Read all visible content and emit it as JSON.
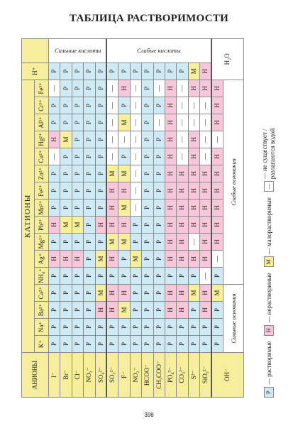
{
  "title": "ТАБЛИЦА РАСТВОРИМОСТИ",
  "table": {
    "anions_header": "АНИОНЫ",
    "cations_header": "КАТИОНЫ",
    "cation_groups": [
      {
        "label": "Сильные основания",
        "cations": [
          "K⁺",
          "Na⁺",
          "Ba²⁺",
          "Ca²⁺"
        ]
      },
      {
        "label": "Слабые основания",
        "cations": [
          "NH₄⁺",
          "Ag⁺",
          "Mg²⁺",
          "Pb²⁺",
          "Mn²⁺",
          "Fe²⁺",
          "Zn²⁺",
          "Cu²⁺",
          "Hg²⁺",
          "Al³⁺",
          "Cr³⁺",
          "Fe³⁺"
        ]
      }
    ],
    "acid_cation": "H⁺",
    "acid_groups": [
      {
        "label": "Сильные кислоты",
        "rows": [
          {
            "anion": "I⁻",
            "cells": [
              "Р",
              "Р",
              "Р",
              "Р",
              "Р",
              "Н",
              "Р",
              "Н",
              "Р",
              "Р",
              "Р",
              "—",
              "Н",
              "Р",
              "Р",
              "—",
              "Р"
            ]
          },
          {
            "anion": "Br⁻",
            "cells": [
              "Р",
              "Р",
              "Р",
              "Р",
              "Р",
              "Н",
              "Р",
              "М",
              "Р",
              "Р",
              "Р",
              "Р",
              "М",
              "Р",
              "Р",
              "Р",
              "Р"
            ]
          },
          {
            "anion": "Cl⁻",
            "cells": [
              "Р",
              "Р",
              "Р",
              "Р",
              "Р",
              "Н",
              "Р",
              "М",
              "Р",
              "Р",
              "Р",
              "Р",
              "Р",
              "Р",
              "Р",
              "Р",
              "Р"
            ]
          },
          {
            "anion": "NO₃⁻",
            "cells": [
              "Р",
              "Р",
              "Р",
              "Р",
              "Р",
              "Р",
              "Р",
              "Р",
              "Р",
              "Р",
              "Р",
              "Р",
              "Р",
              "Р",
              "Р",
              "Р",
              "Р"
            ]
          },
          {
            "anion": "SO₄²⁻",
            "cells": [
              "Р",
              "Р",
              "Н",
              "М",
              "Р",
              "М",
              "Р",
              "Н",
              "Р",
              "Р",
              "Р",
              "Р",
              "Р",
              "Р",
              "Р",
              "Р",
              "Р"
            ]
          }
        ]
      },
      {
        "label": "Слабые кислоты",
        "rows": [
          {
            "anion": "SO₃²⁻",
            "cells": [
              "Р",
              "Р",
              "Н",
              "Н",
              "Р",
              "Н",
              "М",
              "Н",
              "Н",
              "Н",
              "М",
              "—",
              "—",
              "—",
              "—",
              "—",
              "Р"
            ]
          },
          {
            "anion": "F⁻",
            "cells": [
              "Р",
              "Р",
              "М",
              "Н",
              "Р",
              "Р",
              "М",
              "Н",
              "М",
              "Н",
              "М",
              "Р",
              "—",
              "М",
              "Р",
              "Н",
              "Р"
            ]
          },
          {
            "anion": "NO₂⁻",
            "cells": [
              "Р",
              "Р",
              "Р",
              "Р",
              "Р",
              "М",
              "Р",
              "Р",
              "—",
              "—",
              "—",
              "—",
              "—",
              "—",
              "—",
              "—",
              "Р"
            ]
          },
          {
            "anion": "HCOO⁻",
            "cells": [
              "Р",
              "Р",
              "Р",
              "Р",
              "Р",
              "Р",
              "Р",
              "Р",
              "Р",
              "Р",
              "Р",
              "Р",
              "Р",
              "Р",
              "Р",
              "Р",
              "Р"
            ]
          },
          {
            "anion": "CH₃COO⁻",
            "cells": [
              "Р",
              "Р",
              "Р",
              "Р",
              "Р",
              "Р",
              "Р",
              "Р",
              "Р",
              "Р",
              "Р",
              "Р",
              "Р",
              "—",
              "Р",
              "—",
              "Р"
            ]
          },
          {
            "anion": "PO₄³⁻",
            "cells": [
              "Р",
              "Р",
              "Н",
              "Н",
              "Р",
              "Н",
              "Н",
              "Н",
              "Н",
              "Н",
              "Н",
              "Н",
              "Н",
              "Н",
              "Н",
              "Н",
              "Р"
            ]
          },
          {
            "anion": "CO₃²⁻",
            "cells": [
              "Р",
              "Р",
              "Н",
              "Н",
              "Р",
              "Н",
              "Н",
              "Н",
              "Н",
              "Н",
              "Н",
              "—",
              "—",
              "—",
              "—",
              "—",
              "Р"
            ]
          },
          {
            "anion": "S²⁻",
            "cells": [
              "Р",
              "Р",
              "Р",
              "М",
              "Р",
              "Н",
              "—",
              "Н",
              "Н",
              "Н",
              "Н",
              "Н",
              "Н",
              "—",
              "—",
              "Н",
              "М"
            ]
          },
          {
            "anion": "SiO₃²⁻",
            "cells": [
              "Р",
              "Р",
              "Н",
              "Н",
              "—",
              "Н",
              "Н",
              "Н",
              "Н",
              "Н",
              "Н",
              "—",
              "—",
              "—",
              "—",
              "Н",
              "Н"
            ]
          }
        ]
      }
    ],
    "hydroxide": {
      "anion": "OH⁻",
      "cells": [
        "Р",
        "Р",
        "Р",
        "М",
        "Р",
        "—",
        "Н",
        "Н",
        "Н",
        "Н",
        "Н",
        "Н",
        "—",
        "Н",
        "Н",
        "Н"
      ],
      "water": "H₂O"
    }
  },
  "legend": [
    {
      "symbol": "Р",
      "text": "— растворимые",
      "color": "#cfe9f5"
    },
    {
      "symbol": "Н",
      "text": "— нерастворимые",
      "color": "#f7c6d8"
    },
    {
      "symbol": "М",
      "text": "— малорастворимые",
      "color": "#f8ef9c"
    },
    {
      "symbol": "—",
      "text": "— не существует / разлагаются водой",
      "color": "#ffffff"
    }
  ],
  "header_color": "#f6ee9a",
  "page_number": "398"
}
